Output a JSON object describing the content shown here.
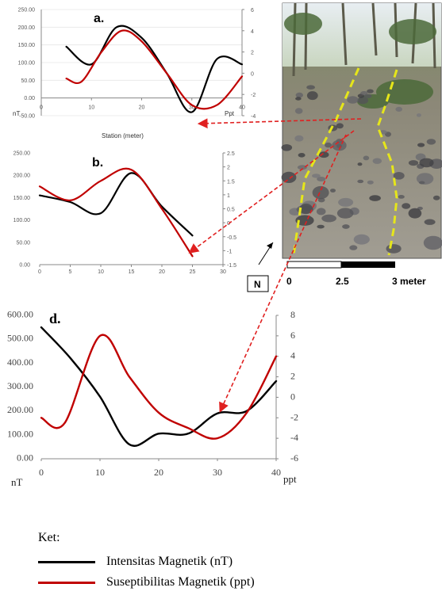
{
  "colors": {
    "intensity": "#000000",
    "susceptibility": "#c00000",
    "arrow": "#e02020",
    "guide": "#e6e61a"
  },
  "chart_data": [
    {
      "panel": "a.",
      "type": "line",
      "xlabel": "Station (meter)",
      "left_unit": "nT",
      "right_unit": "Ppt",
      "xlim": [
        0,
        40
      ],
      "xticks": [
        0,
        10,
        20,
        30,
        40
      ],
      "ylim_left": [
        -50,
        250
      ],
      "yticks_left": [
        "-50.00",
        "0.00",
        "50.00",
        "100.00",
        "150.00",
        "200.00",
        "250.00"
      ],
      "ylim_right": [
        -4,
        6
      ],
      "yticks_right": [
        "-4",
        "-2",
        "0",
        "2",
        "4",
        "6"
      ],
      "series": [
        {
          "name": "Intensitas Magnetik (nT)",
          "axis": "left",
          "x": [
            5,
            10,
            15,
            20,
            25,
            30,
            35,
            40
          ],
          "y": [
            145,
            95,
            200,
            170,
            70,
            -40,
            110,
            95
          ]
        },
        {
          "name": "Suseptibilitas Magnetik (ppt)",
          "axis": "right",
          "x": [
            5,
            8,
            12,
            16,
            20,
            25,
            30,
            35,
            40
          ],
          "y": [
            -0.5,
            -0.8,
            2,
            4,
            3,
            0,
            -3,
            -3,
            -0.3
          ]
        }
      ]
    },
    {
      "panel": "b.",
      "type": "line",
      "xlim": [
        0,
        30
      ],
      "xticks": [
        0,
        5,
        10,
        15,
        20,
        25,
        30
      ],
      "ylim_left": [
        0,
        250
      ],
      "yticks_left": [
        "0.00",
        "50.00",
        "100.00",
        "150.00",
        "200.00",
        "250.00"
      ],
      "ylim_right": [
        -1.5,
        2.5
      ],
      "yticks_right": [
        "-1.5",
        "-1",
        "-0.5",
        "0",
        "0.5",
        "1",
        "1.5",
        "2",
        "2.5"
      ],
      "series": [
        {
          "name": "Intensitas Magnetik (nT)",
          "axis": "left",
          "x": [
            0,
            5,
            10,
            15,
            20,
            25
          ],
          "y": [
            155,
            140,
            115,
            205,
            130,
            65
          ]
        },
        {
          "name": "Suseptibilitas Magnetik (ppt)",
          "axis": "right",
          "x": [
            0,
            5,
            10,
            15,
            20,
            25
          ],
          "y": [
            1.3,
            0.8,
            1.5,
            1.9,
            0.5,
            -1.2
          ]
        }
      ]
    },
    {
      "panel": "d.",
      "type": "line",
      "left_unit": "nT",
      "right_unit": "ppt",
      "xlim": [
        0,
        40
      ],
      "xticks": [
        0,
        10,
        20,
        30,
        40
      ],
      "ylim_left": [
        0,
        600
      ],
      "yticks_left": [
        "0.00",
        "100.00",
        "200.00",
        "300.00",
        "400.00",
        "500.00",
        "600.00"
      ],
      "ylim_right": [
        -6,
        8
      ],
      "yticks_right": [
        "-6",
        "-4",
        "-2",
        "0",
        "2",
        "4",
        "6",
        "8"
      ],
      "series": [
        {
          "name": "Intensitas Magnetik (nT)",
          "axis": "left",
          "x": [
            0,
            5,
            10,
            15,
            20,
            25,
            30,
            35,
            40
          ],
          "y": [
            550,
            420,
            260,
            60,
            105,
            105,
            190,
            200,
            325
          ]
        },
        {
          "name": "Suseptibilitas Magnetik (ppt)",
          "axis": "right",
          "x": [
            0,
            4,
            10,
            15,
            20,
            25,
            30,
            35,
            40
          ],
          "y": [
            -2,
            -2.5,
            6,
            2,
            -1.5,
            -3,
            -4,
            -1.5,
            4
          ]
        }
      ]
    }
  ],
  "photo": {
    "north_label": "N",
    "scale_labels": [
      "0",
      "2.5",
      "3 meter"
    ]
  },
  "legend": {
    "title": "Ket:",
    "items": [
      {
        "label": "Intensitas Magnetik (nT)",
        "color": "#000000"
      },
      {
        "label": "Suseptibilitas Magnetik (ppt)",
        "color": "#c00000"
      }
    ]
  }
}
